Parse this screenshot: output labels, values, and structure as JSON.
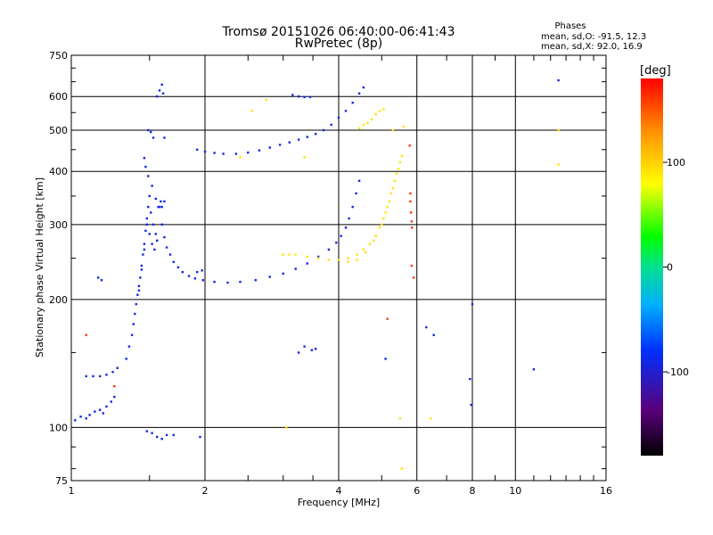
{
  "chart_data": {
    "type": "scatter",
    "title": "Tromsø 20151026 06:40:00-06:41:43",
    "subtitle": "RwPretec (8p)",
    "xlabel": "Frequency [MHz]",
    "ylabel": "Stationary phase Virtual Height [km]",
    "x_scale": "log2",
    "y_scale": "log",
    "xlim": [
      1,
      16
    ],
    "ylim": [
      75,
      750
    ],
    "x_ticks": [
      1,
      2,
      4,
      6,
      8,
      10,
      16
    ],
    "x_tick_labels": [
      "1",
      "2",
      "4",
      "6",
      "8",
      "10",
      "16"
    ],
    "x_grid": [
      2,
      4,
      6,
      8,
      10
    ],
    "y_ticks": [
      75,
      100,
      200,
      300,
      400,
      500,
      600,
      750
    ],
    "y_tick_labels": [
      "75",
      "100",
      "200",
      "300",
      "400",
      "500",
      "600",
      "750"
    ],
    "y_grid": [
      100,
      200,
      300,
      400,
      500,
      600
    ],
    "grid": true,
    "phase_stats": {
      "title": "Phases",
      "o_line": "mean, sd,O: -91.5, 12.3",
      "x_line": "mean, sd,X:  92.0, 16.9"
    },
    "colorbar": {
      "label": "[deg]",
      "range": [
        -180,
        180
      ],
      "ticks": [
        -100,
        0,
        100
      ],
      "tick_labels": [
        "-100",
        "0",
        "100"
      ],
      "colormap": "rainbow (black-purple-blue-cyan-green-yellow-orange-red)"
    },
    "series": [
      {
        "mode": "O",
        "phase_deg": -91.5,
        "points": [
          [
            1.02,
            104
          ],
          [
            1.05,
            106
          ],
          [
            1.08,
            105
          ],
          [
            1.1,
            107
          ],
          [
            1.13,
            109
          ],
          [
            1.16,
            110
          ],
          [
            1.18,
            108
          ],
          [
            1.2,
            112
          ],
          [
            1.23,
            115
          ],
          [
            1.25,
            118
          ],
          [
            1.08,
            132
          ],
          [
            1.12,
            132
          ],
          [
            1.16,
            132
          ],
          [
            1.2,
            133
          ],
          [
            1.24,
            135
          ],
          [
            1.27,
            138
          ],
          [
            1.33,
            145
          ],
          [
            1.35,
            155
          ],
          [
            1.37,
            165
          ],
          [
            1.38,
            175
          ],
          [
            1.39,
            185
          ],
          [
            1.4,
            195
          ],
          [
            1.41,
            205
          ],
          [
            1.42,
            215
          ],
          [
            1.43,
            225
          ],
          [
            1.44,
            240
          ],
          [
            1.45,
            255
          ],
          [
            1.46,
            270
          ],
          [
            1.47,
            290
          ],
          [
            1.48,
            310
          ],
          [
            1.49,
            330
          ],
          [
            1.5,
            350
          ],
          [
            1.51,
            320
          ],
          [
            1.53,
            300
          ],
          [
            1.55,
            285
          ],
          [
            1.57,
            330
          ],
          [
            1.59,
            340
          ],
          [
            1.6,
            300
          ],
          [
            1.62,
            280
          ],
          [
            1.64,
            265
          ],
          [
            1.67,
            255
          ],
          [
            1.7,
            245
          ],
          [
            1.74,
            238
          ],
          [
            1.78,
            232
          ],
          [
            1.84,
            227
          ],
          [
            1.9,
            224
          ],
          [
            1.98,
            222
          ],
          [
            2.1,
            220
          ],
          [
            2.25,
            219
          ],
          [
            2.4,
            220
          ],
          [
            2.6,
            222
          ],
          [
            2.8,
            226
          ],
          [
            3.0,
            230
          ],
          [
            3.2,
            236
          ],
          [
            3.4,
            243
          ],
          [
            3.6,
            252
          ],
          [
            3.8,
            262
          ],
          [
            3.95,
            272
          ],
          [
            4.05,
            282
          ],
          [
            4.15,
            295
          ],
          [
            4.22,
            310
          ],
          [
            4.3,
            330
          ],
          [
            4.38,
            355
          ],
          [
            4.45,
            380
          ],
          [
            1.46,
            430
          ],
          [
            1.47,
            410
          ],
          [
            1.49,
            390
          ],
          [
            1.52,
            370
          ],
          [
            1.55,
            345
          ],
          [
            1.58,
            330
          ],
          [
            1.49,
            500
          ],
          [
            1.51,
            495
          ],
          [
            1.53,
            480
          ],
          [
            1.56,
            600
          ],
          [
            1.58,
            620
          ],
          [
            1.6,
            640
          ],
          [
            1.61,
            610
          ],
          [
            1.62,
            480
          ],
          [
            1.92,
            450
          ],
          [
            2.0,
            445
          ],
          [
            2.1,
            442
          ],
          [
            2.2,
            440
          ],
          [
            2.35,
            440
          ],
          [
            2.5,
            443
          ],
          [
            2.65,
            448
          ],
          [
            2.8,
            455
          ],
          [
            2.95,
            462
          ],
          [
            3.1,
            468
          ],
          [
            3.25,
            475
          ],
          [
            3.4,
            482
          ],
          [
            3.55,
            490
          ],
          [
            3.7,
            500
          ],
          [
            3.85,
            515
          ],
          [
            4.0,
            535
          ],
          [
            4.15,
            555
          ],
          [
            4.3,
            580
          ],
          [
            4.45,
            610
          ],
          [
            4.55,
            630
          ],
          [
            1.15,
            225
          ],
          [
            1.17,
            222
          ],
          [
            1.92,
            232
          ],
          [
            1.97,
            234
          ],
          [
            3.35,
            155
          ],
          [
            3.48,
            152
          ],
          [
            3.55,
            153
          ],
          [
            3.25,
            150
          ],
          [
            1.48,
            98
          ],
          [
            1.52,
            97
          ],
          [
            1.56,
            95
          ],
          [
            1.6,
            94
          ],
          [
            1.64,
            96
          ],
          [
            1.7,
            96
          ],
          [
            1.95,
            95
          ],
          [
            1.42,
            210
          ],
          [
            1.44,
            235
          ],
          [
            1.46,
            262
          ],
          [
            1.48,
            300
          ],
          [
            1.5,
            285
          ],
          [
            1.52,
            270
          ],
          [
            1.54,
            262
          ],
          [
            1.56,
            275
          ],
          [
            1.6,
            330
          ],
          [
            1.62,
            340
          ],
          [
            3.15,
            605
          ],
          [
            3.25,
            600
          ],
          [
            3.35,
            598
          ],
          [
            3.45,
            598
          ],
          [
            5.1,
            145
          ],
          [
            6.3,
            172
          ],
          [
            6.55,
            165
          ],
          [
            7.9,
            130
          ],
          [
            7.95,
            113
          ],
          [
            8.0,
            195
          ],
          [
            11.0,
            137
          ],
          [
            12.5,
            655
          ]
        ]
      },
      {
        "mode": "X",
        "phase_deg": 92.0,
        "points": [
          [
            3.0,
            255
          ],
          [
            3.1,
            255
          ],
          [
            3.2,
            255
          ],
          [
            3.4,
            252
          ],
          [
            3.6,
            250
          ],
          [
            3.8,
            248
          ],
          [
            4.0,
            248
          ],
          [
            4.2,
            250
          ],
          [
            4.4,
            255
          ],
          [
            4.55,
            262
          ],
          [
            4.7,
            270
          ],
          [
            4.85,
            282
          ],
          [
            4.95,
            295
          ],
          [
            5.05,
            310
          ],
          [
            5.15,
            330
          ],
          [
            5.25,
            355
          ],
          [
            5.35,
            380
          ],
          [
            5.45,
            405
          ],
          [
            5.5,
            420
          ],
          [
            4.2,
            245
          ],
          [
            4.4,
            248
          ],
          [
            4.6,
            258
          ],
          [
            4.8,
            275
          ],
          [
            5.0,
            300
          ],
          [
            5.1,
            320
          ],
          [
            5.2,
            340
          ],
          [
            5.3,
            365
          ],
          [
            5.4,
            395
          ],
          [
            5.55,
            435
          ],
          [
            4.45,
            505
          ],
          [
            4.55,
            515
          ],
          [
            4.65,
            520
          ],
          [
            4.75,
            530
          ],
          [
            4.85,
            545
          ],
          [
            4.95,
            555
          ],
          [
            5.05,
            560
          ],
          [
            5.3,
            500
          ],
          [
            5.6,
            510
          ],
          [
            2.55,
            555
          ],
          [
            2.75,
            590
          ],
          [
            3.35,
            432
          ],
          [
            2.4,
            432
          ],
          [
            5.5,
            105
          ],
          [
            6.45,
            105
          ],
          [
            3.05,
            100
          ],
          [
            5.55,
            80
          ],
          [
            12.5,
            415
          ],
          [
            12.5,
            500
          ]
        ]
      },
      {
        "mode": "other",
        "phase_deg": 160,
        "points": [
          [
            5.8,
            355
          ],
          [
            5.8,
            340
          ],
          [
            5.82,
            320
          ],
          [
            5.84,
            305
          ],
          [
            5.85,
            295
          ],
          [
            5.78,
            460
          ],
          [
            5.84,
            240
          ],
          [
            5.9,
            225
          ],
          [
            5.15,
            180
          ],
          [
            1.25,
            125
          ],
          [
            1.08,
            165
          ]
        ]
      }
    ]
  }
}
